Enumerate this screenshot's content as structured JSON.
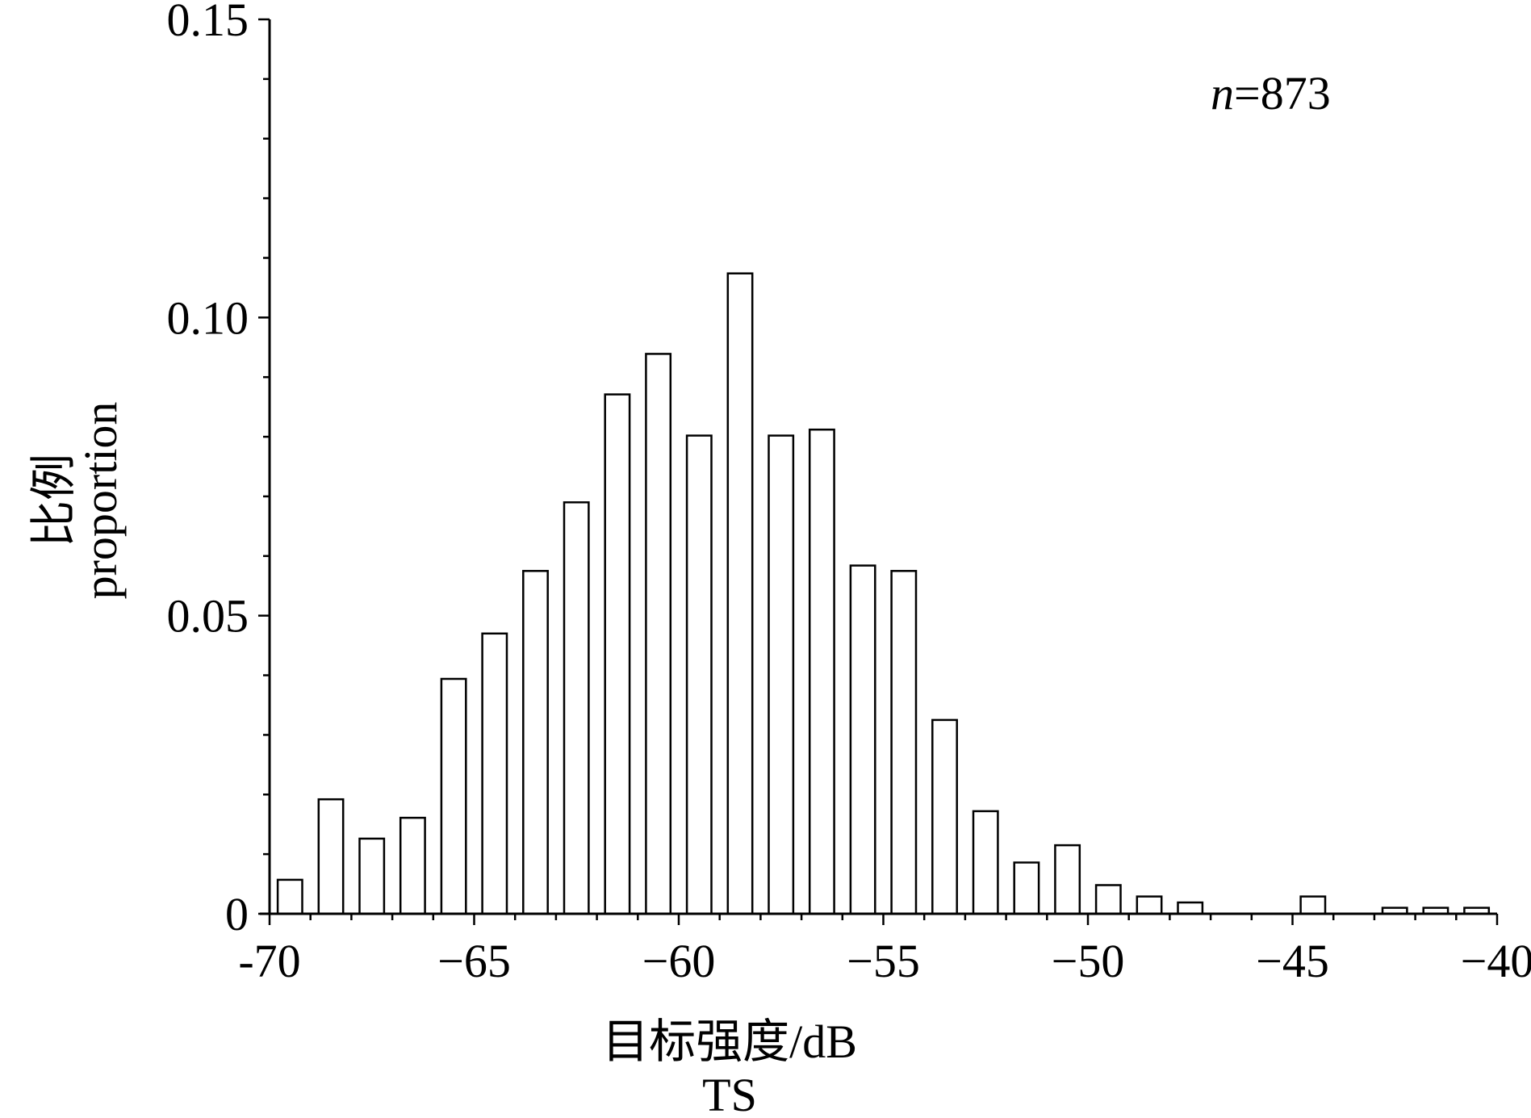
{
  "chart_data": {
    "type": "bar",
    "annotation": {
      "n_label": "n",
      "n_value": "=873"
    },
    "ylabel_cn": "比例",
    "ylabel_en": "proportion",
    "xlabel_cn": "目标强度/dB",
    "xlabel_en": "TS",
    "xlim": [
      -70,
      -40
    ],
    "ylim": [
      0,
      0.15
    ],
    "x_ticks": [
      -70,
      -65,
      -60,
      -55,
      -50,
      -45,
      -40
    ],
    "x_tick_labels": [
      "-70",
      "−65",
      "−60",
      "−55",
      "−50",
      "−45",
      "−40"
    ],
    "y_ticks": [
      0,
      0.05,
      0.1,
      0.15
    ],
    "y_tick_labels": [
      "0",
      "0.05",
      "0.10",
      "0.15"
    ],
    "bin_width": 1,
    "bin_centers": [
      -69.5,
      -68.5,
      -67.5,
      -66.5,
      -65.5,
      -64.5,
      -63.5,
      -62.5,
      -61.5,
      -60.5,
      -59.5,
      -58.5,
      -57.5,
      -56.5,
      -55.5,
      -54.5,
      -53.5,
      -52.5,
      -51.5,
      -50.5,
      -49.5,
      -48.5,
      -47.5,
      -46.5,
      -45.5,
      -44.5,
      -43.5,
      -42.5,
      -41.5,
      -40.5
    ],
    "values": [
      0.0057,
      0.0192,
      0.0126,
      0.0161,
      0.0394,
      0.047,
      0.0575,
      0.069,
      0.0871,
      0.0939,
      0.0802,
      0.1074,
      0.0802,
      0.0812,
      0.0584,
      0.0575,
      0.0325,
      0.0172,
      0.0086,
      0.0115,
      0.0048,
      0.0029,
      0.0019,
      0,
      0,
      0.0029,
      0,
      0.001,
      0.001,
      0.001
    ],
    "grid": false,
    "legend": "none"
  }
}
